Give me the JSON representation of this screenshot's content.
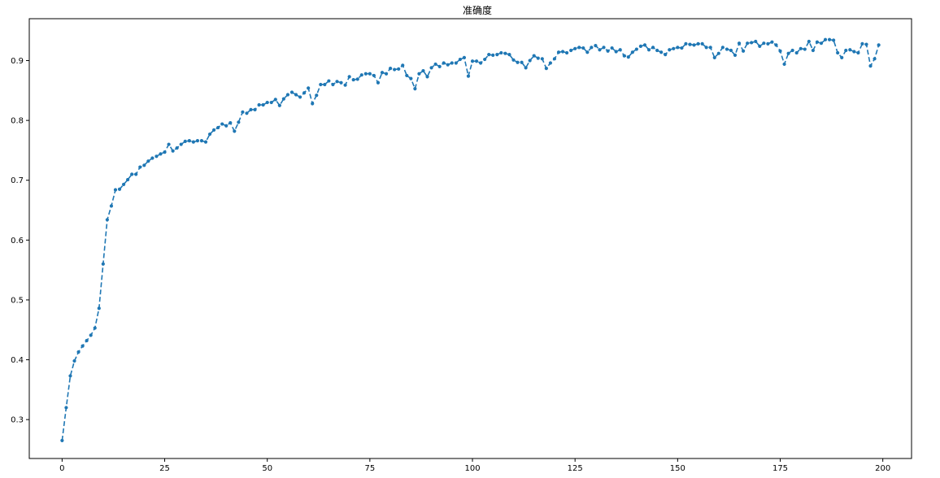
{
  "chart_data": {
    "type": "line",
    "title": "准确度",
    "xlabel": "",
    "ylabel": "",
    "xlim": [
      -8,
      207
    ],
    "ylim": [
      0.235,
      0.97
    ],
    "xticks": [
      0,
      25,
      50,
      75,
      100,
      125,
      150,
      175,
      200
    ],
    "yticks": [
      0.3,
      0.4,
      0.5,
      0.6,
      0.7,
      0.8,
      0.9
    ],
    "grid": false,
    "line_style": "dashed",
    "marker": "circle",
    "color": "#1f77b4",
    "x": [
      0,
      1,
      2,
      3,
      4,
      5,
      6,
      7,
      8,
      9,
      10,
      11,
      12,
      13,
      14,
      15,
      16,
      17,
      18,
      19,
      20,
      21,
      22,
      23,
      24,
      25,
      26,
      27,
      28,
      29,
      30,
      31,
      32,
      33,
      34,
      35,
      36,
      37,
      38,
      39,
      40,
      41,
      42,
      43,
      44,
      45,
      46,
      47,
      48,
      49,
      50,
      51,
      52,
      53,
      54,
      55,
      56,
      57,
      58,
      59,
      60,
      61,
      62,
      63,
      64,
      65,
      66,
      67,
      68,
      69,
      70,
      71,
      72,
      73,
      74,
      75,
      76,
      77,
      78,
      79,
      80,
      81,
      82,
      83,
      84,
      85,
      86,
      87,
      88,
      89,
      90,
      91,
      92,
      93,
      94,
      95,
      96,
      97,
      98,
      99,
      100,
      101,
      102,
      103,
      104,
      105,
      106,
      107,
      108,
      109,
      110,
      111,
      112,
      113,
      114,
      115,
      116,
      117,
      118,
      119,
      120,
      121,
      122,
      123,
      124,
      125,
      126,
      127,
      128,
      129,
      130,
      131,
      132,
      133,
      134,
      135,
      136,
      137,
      138,
      139,
      140,
      141,
      142,
      143,
      144,
      145,
      146,
      147,
      148,
      149,
      150,
      151,
      152,
      153,
      154,
      155,
      156,
      157,
      158,
      159,
      160,
      161,
      162,
      163,
      164,
      165,
      166,
      167,
      168,
      169,
      170,
      171,
      172,
      173,
      174,
      175,
      176,
      177,
      178,
      179,
      180,
      181,
      182,
      183,
      184,
      185,
      186,
      187,
      188,
      189,
      190,
      191,
      192,
      193,
      194,
      195,
      196,
      197,
      198,
      199
    ],
    "y": [
      0.265,
      0.32,
      0.373,
      0.398,
      0.413,
      0.423,
      0.432,
      0.441,
      0.453,
      0.486,
      0.56,
      0.634,
      0.657,
      0.684,
      0.685,
      0.693,
      0.701,
      0.71,
      0.71,
      0.722,
      0.725,
      0.732,
      0.737,
      0.74,
      0.744,
      0.747,
      0.76,
      0.749,
      0.754,
      0.76,
      0.765,
      0.766,
      0.764,
      0.766,
      0.766,
      0.764,
      0.777,
      0.784,
      0.788,
      0.794,
      0.791,
      0.796,
      0.782,
      0.797,
      0.814,
      0.812,
      0.818,
      0.818,
      0.826,
      0.826,
      0.83,
      0.83,
      0.835,
      0.825,
      0.836,
      0.843,
      0.847,
      0.843,
      0.839,
      0.846,
      0.854,
      0.828,
      0.842,
      0.86,
      0.86,
      0.866,
      0.86,
      0.865,
      0.863,
      0.859,
      0.873,
      0.868,
      0.869,
      0.876,
      0.878,
      0.878,
      0.875,
      0.863,
      0.88,
      0.878,
      0.887,
      0.885,
      0.886,
      0.892,
      0.875,
      0.87,
      0.853,
      0.878,
      0.883,
      0.873,
      0.888,
      0.894,
      0.89,
      0.896,
      0.893,
      0.896,
      0.896,
      0.902,
      0.905,
      0.874,
      0.899,
      0.899,
      0.896,
      0.902,
      0.91,
      0.909,
      0.91,
      0.913,
      0.912,
      0.91,
      0.901,
      0.897,
      0.897,
      0.888,
      0.9,
      0.908,
      0.904,
      0.903,
      0.887,
      0.896,
      0.903,
      0.914,
      0.915,
      0.913,
      0.917,
      0.92,
      0.922,
      0.921,
      0.914,
      0.922,
      0.925,
      0.918,
      0.922,
      0.916,
      0.921,
      0.915,
      0.918,
      0.908,
      0.906,
      0.914,
      0.919,
      0.924,
      0.926,
      0.918,
      0.922,
      0.917,
      0.914,
      0.91,
      0.918,
      0.92,
      0.922,
      0.921,
      0.928,
      0.927,
      0.926,
      0.928,
      0.928,
      0.922,
      0.922,
      0.905,
      0.912,
      0.922,
      0.919,
      0.917,
      0.909,
      0.929,
      0.916,
      0.929,
      0.93,
      0.932,
      0.924,
      0.929,
      0.928,
      0.931,
      0.926,
      0.916,
      0.894,
      0.912,
      0.917,
      0.913,
      0.92,
      0.919,
      0.932,
      0.917,
      0.931,
      0.929,
      0.935,
      0.935,
      0.934,
      0.913,
      0.905,
      0.917,
      0.918,
      0.915,
      0.913,
      0.928,
      0.927,
      0.891,
      0.903,
      0.926
    ]
  }
}
